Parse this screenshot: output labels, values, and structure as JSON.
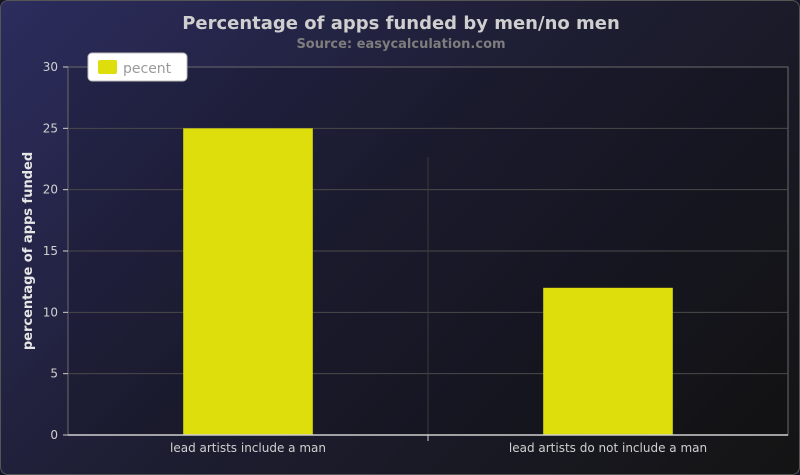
{
  "chart_data": {
    "type": "bar",
    "title": "Percentage of apps funded by men/no men",
    "subtitle": "Source: easycalculation.com",
    "xlabel": "",
    "ylabel": "percentage of apps funded",
    "categories": [
      "lead artists include a man",
      "lead artists do not include a man"
    ],
    "series": [
      {
        "name": "pecent",
        "values": [
          25,
          12
        ],
        "color": "#dede0c"
      }
    ],
    "ylim": [
      0,
      30
    ],
    "yticks": [
      "0",
      "5",
      "10",
      "15",
      "20",
      "25",
      "30"
    ],
    "grid": true,
    "legend_position": "top-left"
  }
}
